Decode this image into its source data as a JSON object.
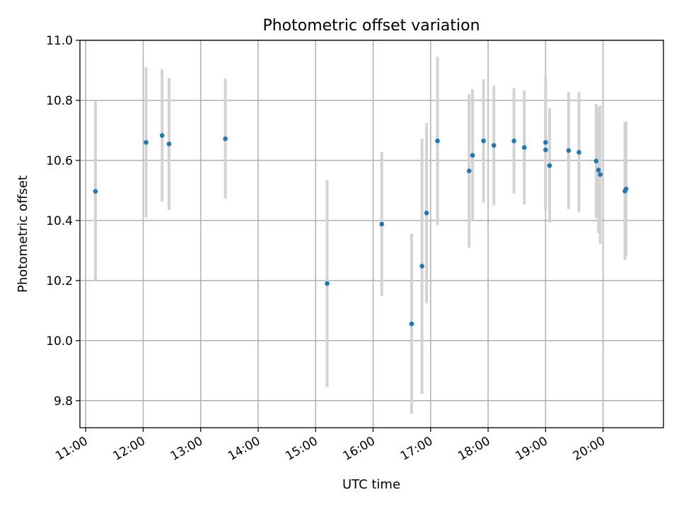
{
  "chart_data": {
    "type": "scatter",
    "title": "Photometric offset variation",
    "xlabel": "UTC time",
    "ylabel": "Photometric offset",
    "grid": true,
    "colors": {
      "point": "#1f77b4",
      "errorbar": "#d3d3d3",
      "grid": "#b0b0b0"
    },
    "xlim_hours": [
      10.9,
      21.05
    ],
    "ylim": [
      9.71,
      11.0
    ],
    "x_ticks": [
      {
        "hour": 11,
        "label": "11:00"
      },
      {
        "hour": 12,
        "label": "12:00"
      },
      {
        "hour": 13,
        "label": "13:00"
      },
      {
        "hour": 14,
        "label": "14:00"
      },
      {
        "hour": 15,
        "label": "15:00"
      },
      {
        "hour": 16,
        "label": "16:00"
      },
      {
        "hour": 17,
        "label": "17:00"
      },
      {
        "hour": 18,
        "label": "18:00"
      },
      {
        "hour": 19,
        "label": "19:00"
      },
      {
        "hour": 20,
        "label": "20:00"
      }
    ],
    "y_ticks": [
      {
        "value": 9.8,
        "label": "9.8"
      },
      {
        "value": 10.0,
        "label": "10.0"
      },
      {
        "value": 10.2,
        "label": "10.2"
      },
      {
        "value": 10.4,
        "label": "10.4"
      },
      {
        "value": 10.6,
        "label": "10.6"
      },
      {
        "value": 10.8,
        "label": "10.8"
      },
      {
        "value": 11.0,
        "label": "11.0"
      }
    ],
    "points": [
      {
        "t": 11.17,
        "y": 10.497,
        "err": 0.3
      },
      {
        "t": 12.05,
        "y": 10.66,
        "err": 0.25
      },
      {
        "t": 12.33,
        "y": 10.683,
        "err": 0.22
      },
      {
        "t": 12.45,
        "y": 10.655,
        "err": 0.22
      },
      {
        "t": 13.43,
        "y": 10.672,
        "err": 0.2
      },
      {
        "t": 15.2,
        "y": 10.19,
        "err": 0.345
      },
      {
        "t": 16.15,
        "y": 10.388,
        "err": 0.24
      },
      {
        "t": 16.67,
        "y": 10.056,
        "err": 0.3
      },
      {
        "t": 16.85,
        "y": 10.248,
        "err": 0.425
      },
      {
        "t": 16.93,
        "y": 10.425,
        "err": 0.3
      },
      {
        "t": 17.12,
        "y": 10.665,
        "err": 0.28
      },
      {
        "t": 17.67,
        "y": 10.565,
        "err": 0.255
      },
      {
        "t": 17.73,
        "y": 10.617,
        "err": 0.22
      },
      {
        "t": 17.92,
        "y": 10.665,
        "err": 0.205
      },
      {
        "t": 18.1,
        "y": 10.65,
        "err": 0.2
      },
      {
        "t": 18.45,
        "y": 10.665,
        "err": 0.175
      },
      {
        "t": 18.63,
        "y": 10.643,
        "err": 0.19
      },
      {
        "t": 19.0,
        "y": 10.66,
        "err": 0.225
      },
      {
        "t": 19.0,
        "y": 10.635,
        "err": 0.2
      },
      {
        "t": 19.07,
        "y": 10.583,
        "err": 0.19
      },
      {
        "t": 19.4,
        "y": 10.633,
        "err": 0.195
      },
      {
        "t": 19.58,
        "y": 10.627,
        "err": 0.2
      },
      {
        "t": 19.88,
        "y": 10.598,
        "err": 0.19
      },
      {
        "t": 19.92,
        "y": 10.568,
        "err": 0.21
      },
      {
        "t": 19.95,
        "y": 10.553,
        "err": 0.23
      },
      {
        "t": 20.38,
        "y": 10.498,
        "err": 0.23
      },
      {
        "t": 20.4,
        "y": 10.505,
        "err": 0.225
      }
    ]
  }
}
